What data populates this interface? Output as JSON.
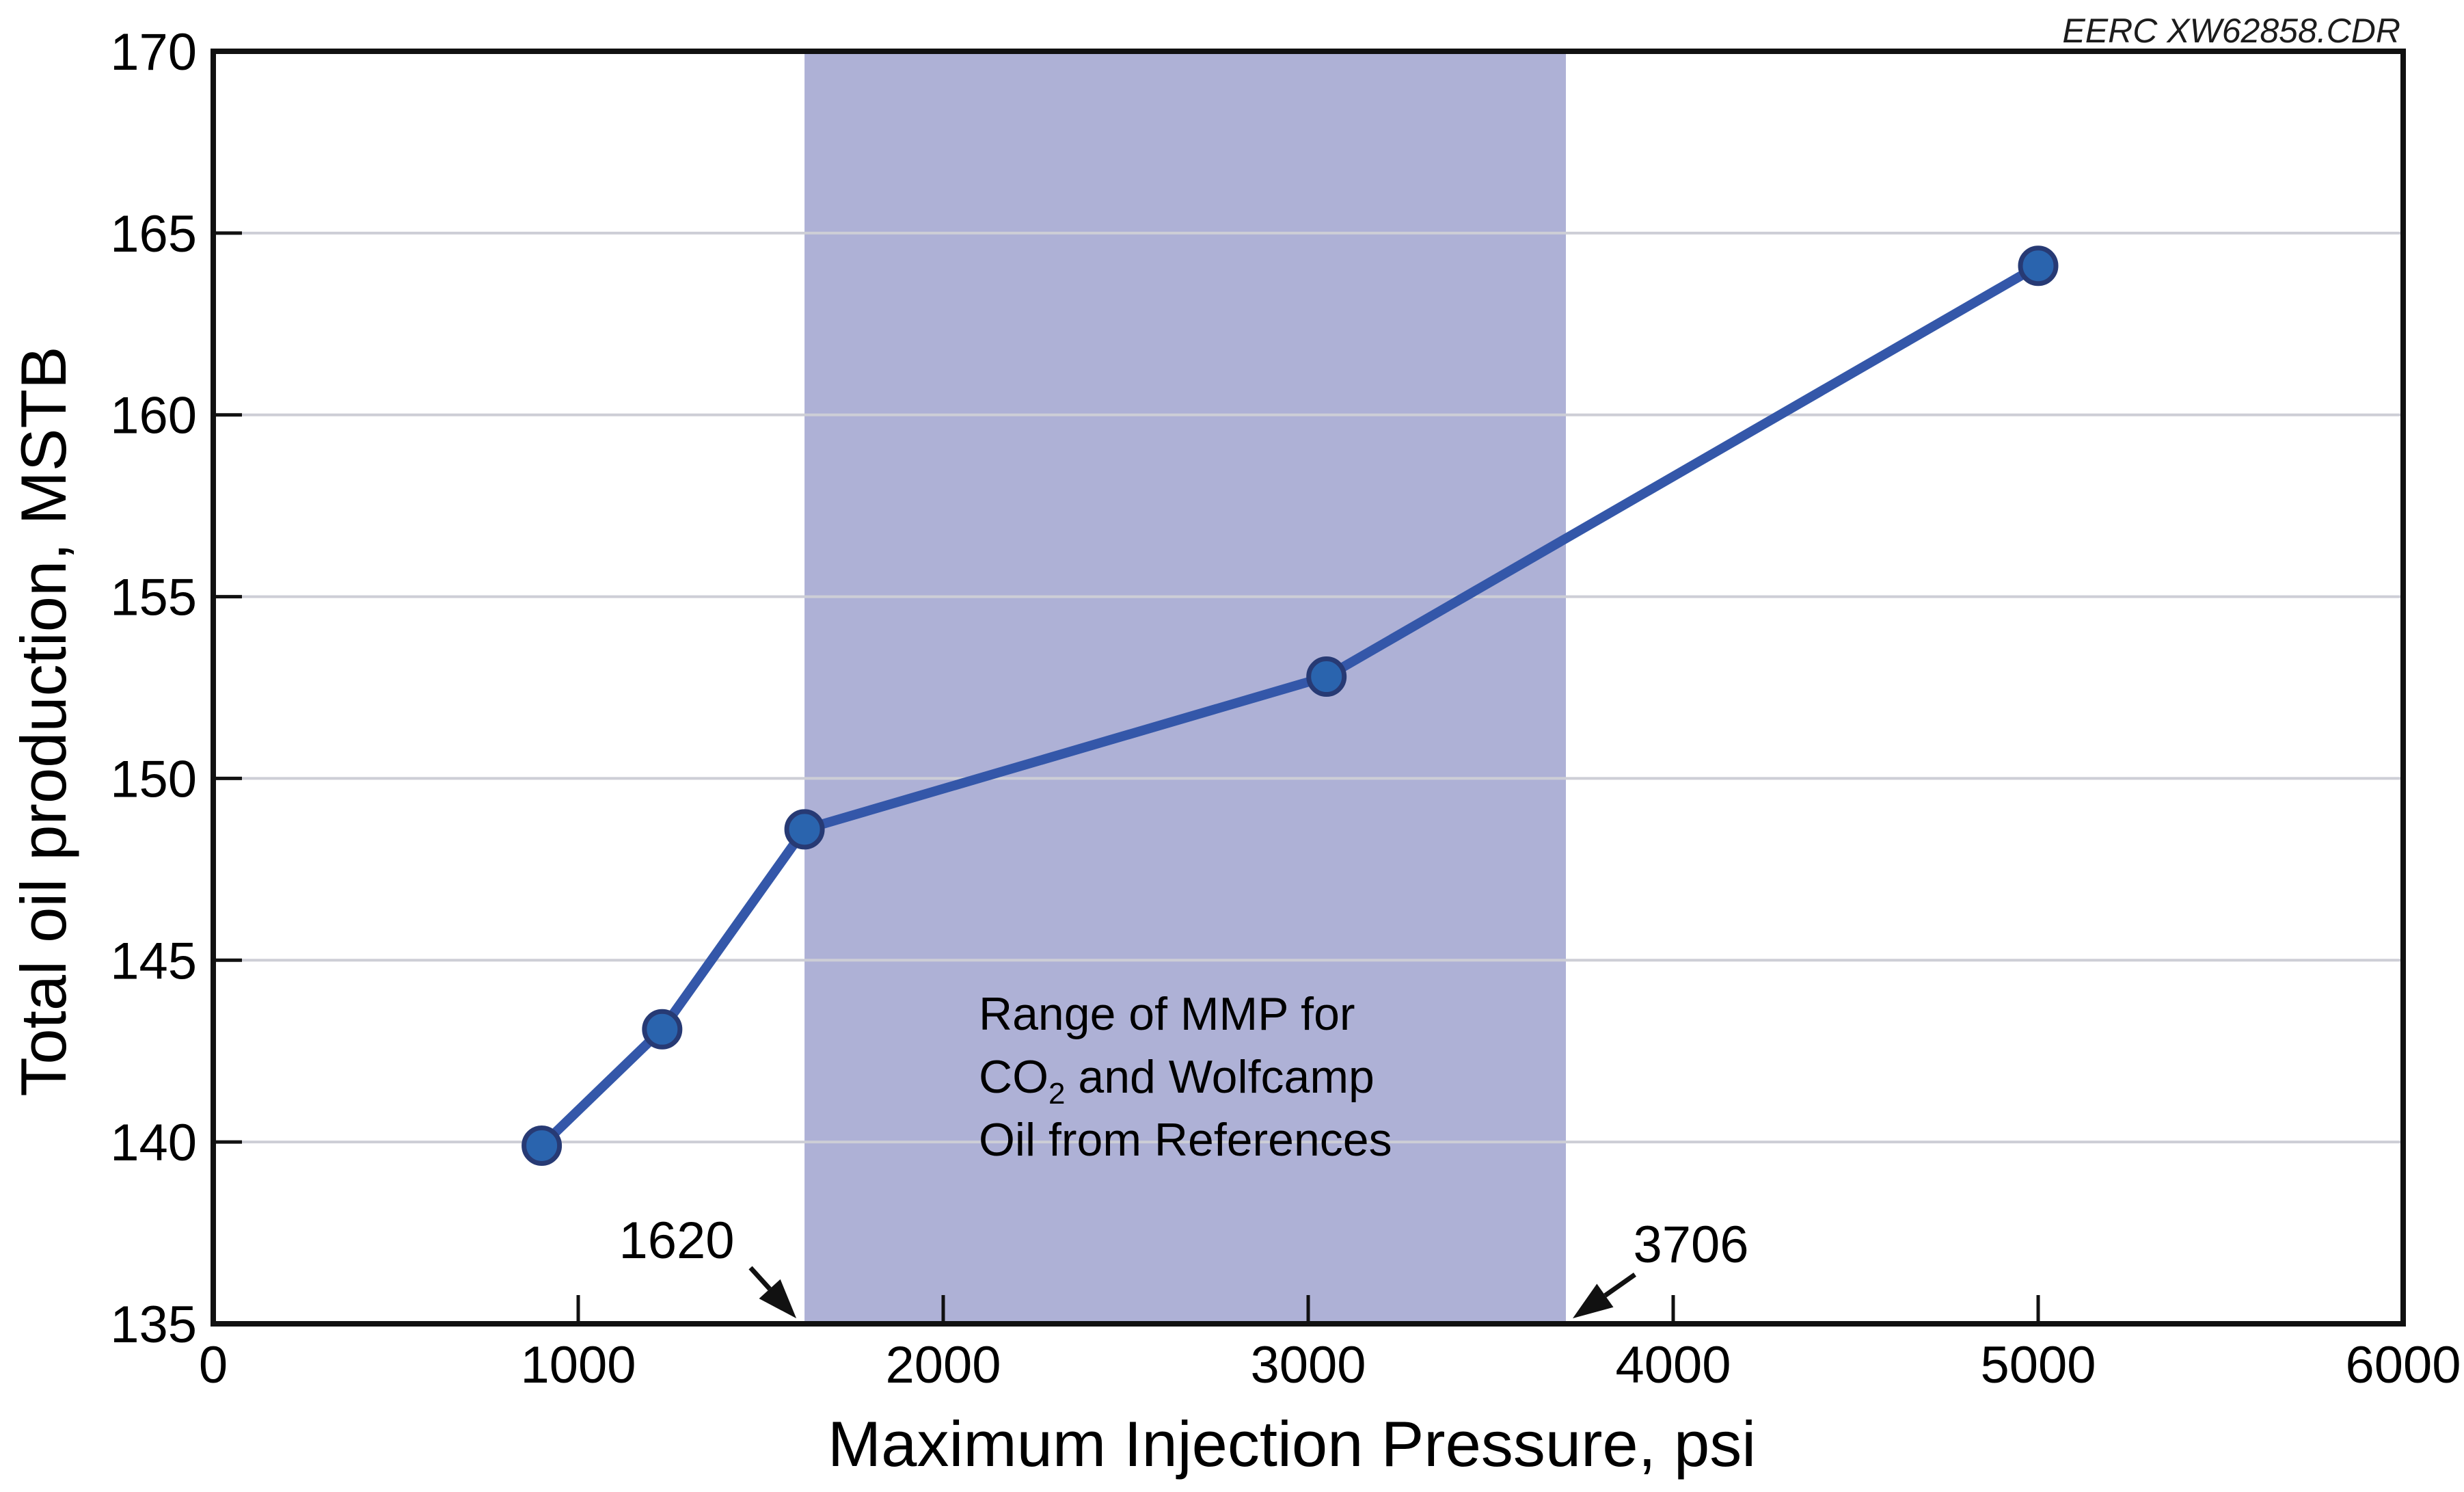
{
  "watermark": "EERC XW62858.CDR",
  "chart_data": {
    "type": "line",
    "title": "",
    "xlabel": "Maximum Injection Pressure, psi",
    "ylabel": "Total oil production, MSTB",
    "xlim": [
      0,
      6000
    ],
    "ylim": [
      135,
      170
    ],
    "xticks": [
      0,
      1000,
      2000,
      3000,
      4000,
      5000,
      6000
    ],
    "yticks": [
      135,
      140,
      145,
      150,
      155,
      160,
      165,
      170
    ],
    "grid": "horizontal",
    "legend": "none",
    "series": [
      {
        "name": "Total oil production vs maximum injection pressure",
        "points": [
          [
            900,
            139.9
          ],
          [
            1230,
            143.1
          ],
          [
            1620,
            148.6
          ],
          [
            3050,
            152.8
          ],
          [
            5000,
            164.1
          ]
        ],
        "line_color": "#3457a9",
        "marker_fill": "#2a64ae",
        "marker_edge": "#273a74"
      }
    ],
    "band": {
      "from": 1620,
      "to": 3706,
      "from_label": "1620",
      "to_label": "3706",
      "color": "#aeb1d6",
      "label_lines": [
        [
          {
            "t": "Range of MMP for"
          }
        ],
        [
          {
            "t": "CO"
          },
          {
            "t": "2",
            "sub": true
          },
          {
            "t": " and Wolfcamp"
          }
        ],
        [
          {
            "t": "Oil from References"
          }
        ]
      ]
    },
    "colors": {
      "gridline": "#cdced6",
      "axis": "#111111"
    }
  }
}
